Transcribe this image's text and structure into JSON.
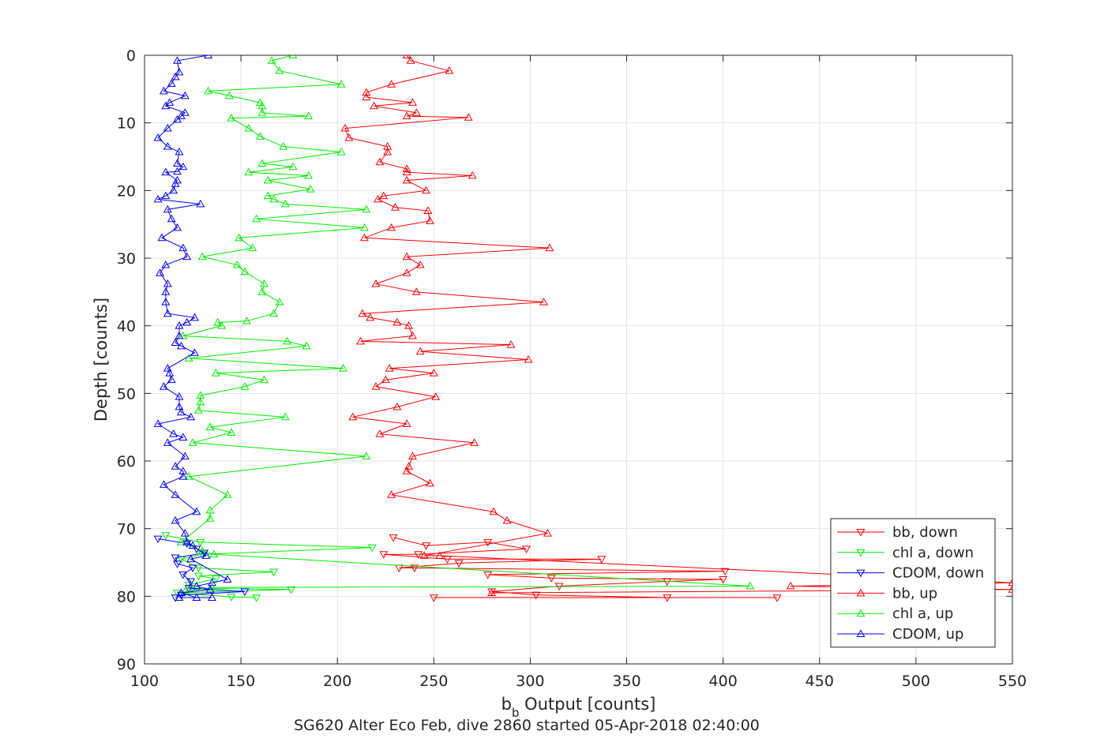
{
  "chart_data": {
    "type": "line",
    "xlabel_main": "b",
    "xlabel_sub": "b",
    "xlabel_rest": " Output [counts]",
    "ylabel": "Depth [counts]",
    "caption": "SG620 Alter Eco Feb, dive 2860 started 05-Apr-2018 02:40:00",
    "xlim": [
      100,
      550
    ],
    "ylim": [
      0,
      90
    ],
    "y_reversed": true,
    "grid": true,
    "x_ticks": [
      100,
      150,
      200,
      250,
      300,
      350,
      400,
      450,
      500,
      550
    ],
    "y_ticks": [
      0,
      10,
      20,
      30,
      40,
      50,
      60,
      70,
      80,
      90
    ],
    "legend_position": "bottom-right",
    "series": [
      {
        "name": "bb, down",
        "color": "#ff0000",
        "marker": "triangle-down",
        "points": [
          [
            229,
            71.3
          ],
          [
            246,
            72.5
          ],
          [
            278,
            72
          ],
          [
            298,
            73
          ],
          [
            242,
            73.8
          ],
          [
            224,
            73.8
          ],
          [
            257,
            74.5
          ],
          [
            337,
            74.5
          ],
          [
            263,
            75.1
          ],
          [
            232,
            75.8
          ],
          [
            240,
            75.8
          ],
          [
            401,
            76.3
          ],
          [
            278,
            76.8
          ],
          [
            311,
            77.3
          ],
          [
            400,
            77.5
          ],
          [
            371,
            77.8
          ],
          [
            315,
            78.5
          ],
          [
            280,
            79.3
          ],
          [
            303,
            79.8
          ],
          [
            371,
            80.2
          ],
          [
            428,
            80.2
          ],
          [
            250,
            80.2
          ]
        ]
      },
      {
        "name": "chl a, down",
        "color": "#00ee00",
        "marker": "triangle-down",
        "points": [
          [
            111,
            71
          ],
          [
            129,
            72
          ],
          [
            218,
            72.8
          ],
          [
            130,
            73.8
          ],
          [
            119,
            74.5
          ],
          [
            128,
            75.8
          ],
          [
            167,
            76.4
          ],
          [
            128,
            77
          ],
          [
            137,
            77.4
          ],
          [
            123,
            78.3
          ],
          [
            125,
            78.8
          ],
          [
            176,
            79
          ],
          [
            117,
            79.5
          ],
          [
            145,
            80.1
          ],
          [
            158,
            80.2
          ]
        ]
      },
      {
        "name": "CDOM, down",
        "color": "#0000ff",
        "marker": "triangle-down",
        "points": [
          [
            107,
            71.5
          ],
          [
            122,
            72.2
          ],
          [
            127,
            73
          ],
          [
            131,
            73.6
          ],
          [
            116,
            74.3
          ],
          [
            117,
            75.2
          ],
          [
            125,
            75.8
          ],
          [
            120,
            76.8
          ],
          [
            124,
            77.8
          ],
          [
            123,
            78.8
          ],
          [
            152,
            79.3
          ],
          [
            119,
            79.8
          ],
          [
            116,
            80.2
          ]
        ]
      },
      {
        "name": "bb, up",
        "color": "#ff0000",
        "marker": "triangle-up",
        "points": [
          [
            236,
            0
          ],
          [
            238,
            0.8
          ],
          [
            258,
            2.3
          ],
          [
            228,
            4.3
          ],
          [
            215,
            5.5
          ],
          [
            215,
            6.2
          ],
          [
            239,
            7
          ],
          [
            219,
            7.5
          ],
          [
            241,
            8.5
          ],
          [
            236,
            9
          ],
          [
            268,
            9.2
          ],
          [
            204,
            10.8
          ],
          [
            206,
            12.2
          ],
          [
            226,
            13.5
          ],
          [
            226,
            14.3
          ],
          [
            222,
            15.8
          ],
          [
            236,
            16.8
          ],
          [
            236,
            17.3
          ],
          [
            270,
            17.8
          ],
          [
            236,
            18.5
          ],
          [
            246,
            20
          ],
          [
            224,
            20.8
          ],
          [
            221,
            21.3
          ],
          [
            230,
            22.5
          ],
          [
            247,
            23
          ],
          [
            248,
            24.5
          ],
          [
            228,
            25.5
          ],
          [
            214,
            27
          ],
          [
            310,
            28.5
          ],
          [
            236,
            29.8
          ],
          [
            243,
            31
          ],
          [
            236,
            32.2
          ],
          [
            220,
            33.8
          ],
          [
            241,
            35
          ],
          [
            307,
            36.5
          ],
          [
            213,
            38.2
          ],
          [
            217,
            38.8
          ],
          [
            231,
            39.5
          ],
          [
            237,
            40
          ],
          [
            239,
            41.5
          ],
          [
            212,
            42.3
          ],
          [
            290,
            42.8
          ],
          [
            243,
            43.8
          ],
          [
            299,
            45
          ],
          [
            227,
            46.3
          ],
          [
            250,
            47
          ],
          [
            225,
            48
          ],
          [
            220,
            49
          ],
          [
            251,
            50.5
          ],
          [
            231,
            52
          ],
          [
            208,
            53.5
          ],
          [
            236,
            54.5
          ],
          [
            222,
            56
          ],
          [
            271,
            57.3
          ],
          [
            239,
            59.3
          ],
          [
            237,
            60.8
          ],
          [
            236,
            61.5
          ],
          [
            248,
            63.3
          ],
          [
            228,
            65
          ],
          [
            281,
            67.5
          ],
          [
            288,
            68.8
          ],
          [
            309,
            70.7
          ],
          [
            245,
            74
          ],
          [
            253,
            74
          ],
          [
            550,
            78
          ],
          [
            435,
            78.5
          ],
          [
            550,
            79
          ],
          [
            280,
            79.5
          ]
        ]
      },
      {
        "name": "chl a, up",
        "color": "#00ee00",
        "marker": "triangle-up",
        "points": [
          [
            177,
            0
          ],
          [
            166,
            0.8
          ],
          [
            170,
            2.3
          ],
          [
            202,
            4.3
          ],
          [
            133,
            5.3
          ],
          [
            144,
            6
          ],
          [
            160,
            7
          ],
          [
            161,
            7.5
          ],
          [
            161,
            8.5
          ],
          [
            185,
            9
          ],
          [
            145,
            9.3
          ],
          [
            154,
            10.8
          ],
          [
            160,
            12
          ],
          [
            172,
            13.5
          ],
          [
            202,
            14.3
          ],
          [
            161,
            16
          ],
          [
            177,
            16.5
          ],
          [
            154,
            17.3
          ],
          [
            185,
            17.8
          ],
          [
            164,
            18.5
          ],
          [
            186,
            19.8
          ],
          [
            164,
            20.8
          ],
          [
            167,
            21.3
          ],
          [
            173,
            22
          ],
          [
            215,
            22.8
          ],
          [
            158,
            24.2
          ],
          [
            214,
            25.5
          ],
          [
            149,
            27
          ],
          [
            156,
            28.5
          ],
          [
            130,
            29.8
          ],
          [
            148,
            31
          ],
          [
            152,
            32
          ],
          [
            162,
            33.8
          ],
          [
            161,
            35
          ],
          [
            170,
            36.5
          ],
          [
            167,
            38.2
          ],
          [
            153,
            39.3
          ],
          [
            138,
            39.5
          ],
          [
            140,
            40
          ],
          [
            120,
            41.5
          ],
          [
            174,
            42.3
          ],
          [
            184,
            43
          ],
          [
            123,
            44.8
          ],
          [
            203,
            46.3
          ],
          [
            137,
            47
          ],
          [
            162,
            48
          ],
          [
            152,
            49
          ],
          [
            129,
            50.3
          ],
          [
            129,
            51.3
          ],
          [
            128,
            52.5
          ],
          [
            173,
            53.5
          ],
          [
            134,
            55
          ],
          [
            145,
            55.8
          ],
          [
            125,
            57.3
          ],
          [
            215,
            59.3
          ],
          [
            123,
            62.3
          ],
          [
            143,
            65
          ],
          [
            134,
            67.3
          ],
          [
            134,
            68.5
          ],
          [
            119,
            72
          ],
          [
            130,
            73.3
          ],
          [
            136,
            73.8
          ],
          [
            414,
            78.5
          ],
          [
            135,
            78.7
          ],
          [
            121,
            79.3
          ]
        ]
      },
      {
        "name": "CDOM, up",
        "color": "#0000ff",
        "marker": "triangle-up",
        "points": [
          [
            133,
            0
          ],
          [
            117,
            0.8
          ],
          [
            118,
            2.5
          ],
          [
            116,
            3.2
          ],
          [
            114,
            4.2
          ],
          [
            110,
            5.3
          ],
          [
            121,
            6
          ],
          [
            113,
            7
          ],
          [
            111,
            7.5
          ],
          [
            121,
            8.5
          ],
          [
            119,
            9
          ],
          [
            117,
            9.5
          ],
          [
            112,
            10.8
          ],
          [
            107,
            12.2
          ],
          [
            112,
            13.5
          ],
          [
            118,
            14.3
          ],
          [
            117,
            16
          ],
          [
            120,
            16.5
          ],
          [
            117,
            17.2
          ],
          [
            111,
            17.3
          ],
          [
            117,
            18.5
          ],
          [
            116,
            19
          ],
          [
            115,
            20
          ],
          [
            111,
            20.8
          ],
          [
            107,
            21.3
          ],
          [
            129,
            22
          ],
          [
            112,
            22.8
          ],
          [
            114,
            24.2
          ],
          [
            117,
            25.5
          ],
          [
            109,
            27
          ],
          [
            120,
            28.5
          ],
          [
            122,
            29.8
          ],
          [
            111,
            31
          ],
          [
            108,
            32.2
          ],
          [
            112,
            33.8
          ],
          [
            111,
            35
          ],
          [
            111,
            36.5
          ],
          [
            112,
            38.2
          ],
          [
            126,
            38.8
          ],
          [
            122,
            39.5
          ],
          [
            118,
            40
          ],
          [
            118,
            41.5
          ],
          [
            116,
            42.5
          ],
          [
            119,
            43
          ],
          [
            126,
            44
          ],
          [
            112,
            46.3
          ],
          [
            113,
            47
          ],
          [
            114,
            48
          ],
          [
            110,
            49
          ],
          [
            118,
            50.5
          ],
          [
            118,
            52
          ],
          [
            119,
            52.8
          ],
          [
            124,
            53.5
          ],
          [
            107,
            54.5
          ],
          [
            115,
            56
          ],
          [
            120,
            56.5
          ],
          [
            112,
            57.3
          ],
          [
            121,
            59.3
          ],
          [
            116,
            60.8
          ],
          [
            120,
            61.5
          ],
          [
            120,
            62.3
          ],
          [
            110,
            63.5
          ],
          [
            116,
            65
          ],
          [
            127,
            67.5
          ],
          [
            116,
            68.8
          ],
          [
            121,
            70.7
          ],
          [
            122,
            72
          ],
          [
            125,
            72.5
          ],
          [
            132,
            74
          ],
          [
            124,
            74.5
          ],
          [
            143,
            77.5
          ],
          [
            135,
            78
          ],
          [
            127,
            78.5
          ],
          [
            134,
            79
          ],
          [
            119,
            79.5
          ],
          [
            127,
            80.2
          ],
          [
            135,
            80.2
          ],
          [
            118,
            80.2
          ]
        ]
      }
    ]
  }
}
